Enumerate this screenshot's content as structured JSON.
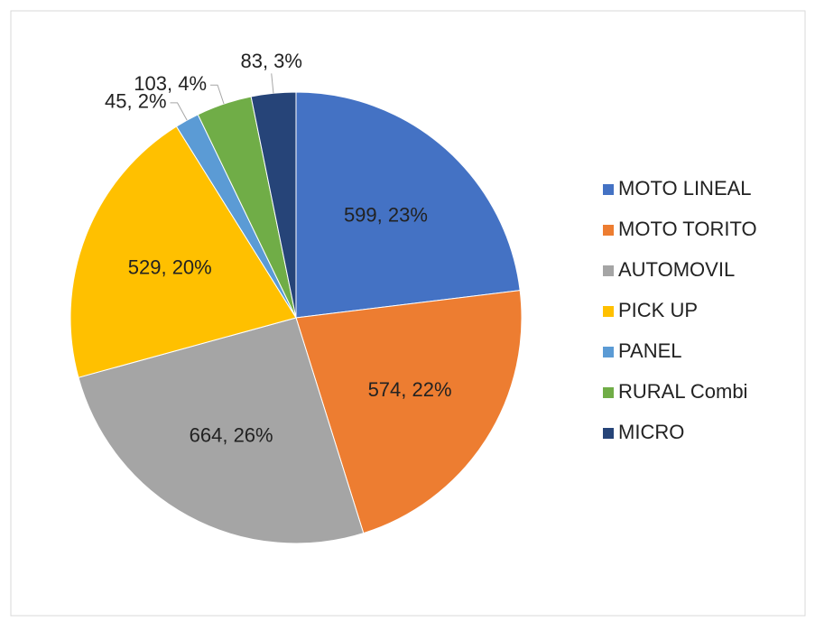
{
  "chart_data": {
    "type": "pie",
    "categories": [
      "MOTO LINEAL",
      "MOTO TORITO",
      "AUTOMOVIL",
      "PICK UP",
      "PANEL",
      "RURAL Combi",
      "MICRO"
    ],
    "values": [
      599,
      574,
      664,
      529,
      45,
      103,
      83
    ],
    "value_labels": [
      "599, 23%",
      "574, 22%",
      "664, 26%",
      "529, 20%",
      "45, 2%",
      "103, 4%",
      "83, 3%"
    ],
    "colors": [
      "#4472c4",
      "#ed7d31",
      "#a5a5a5",
      "#ffc000",
      "#5b9bd5",
      "#70ad47",
      "#264478"
    ],
    "legend": "right"
  }
}
